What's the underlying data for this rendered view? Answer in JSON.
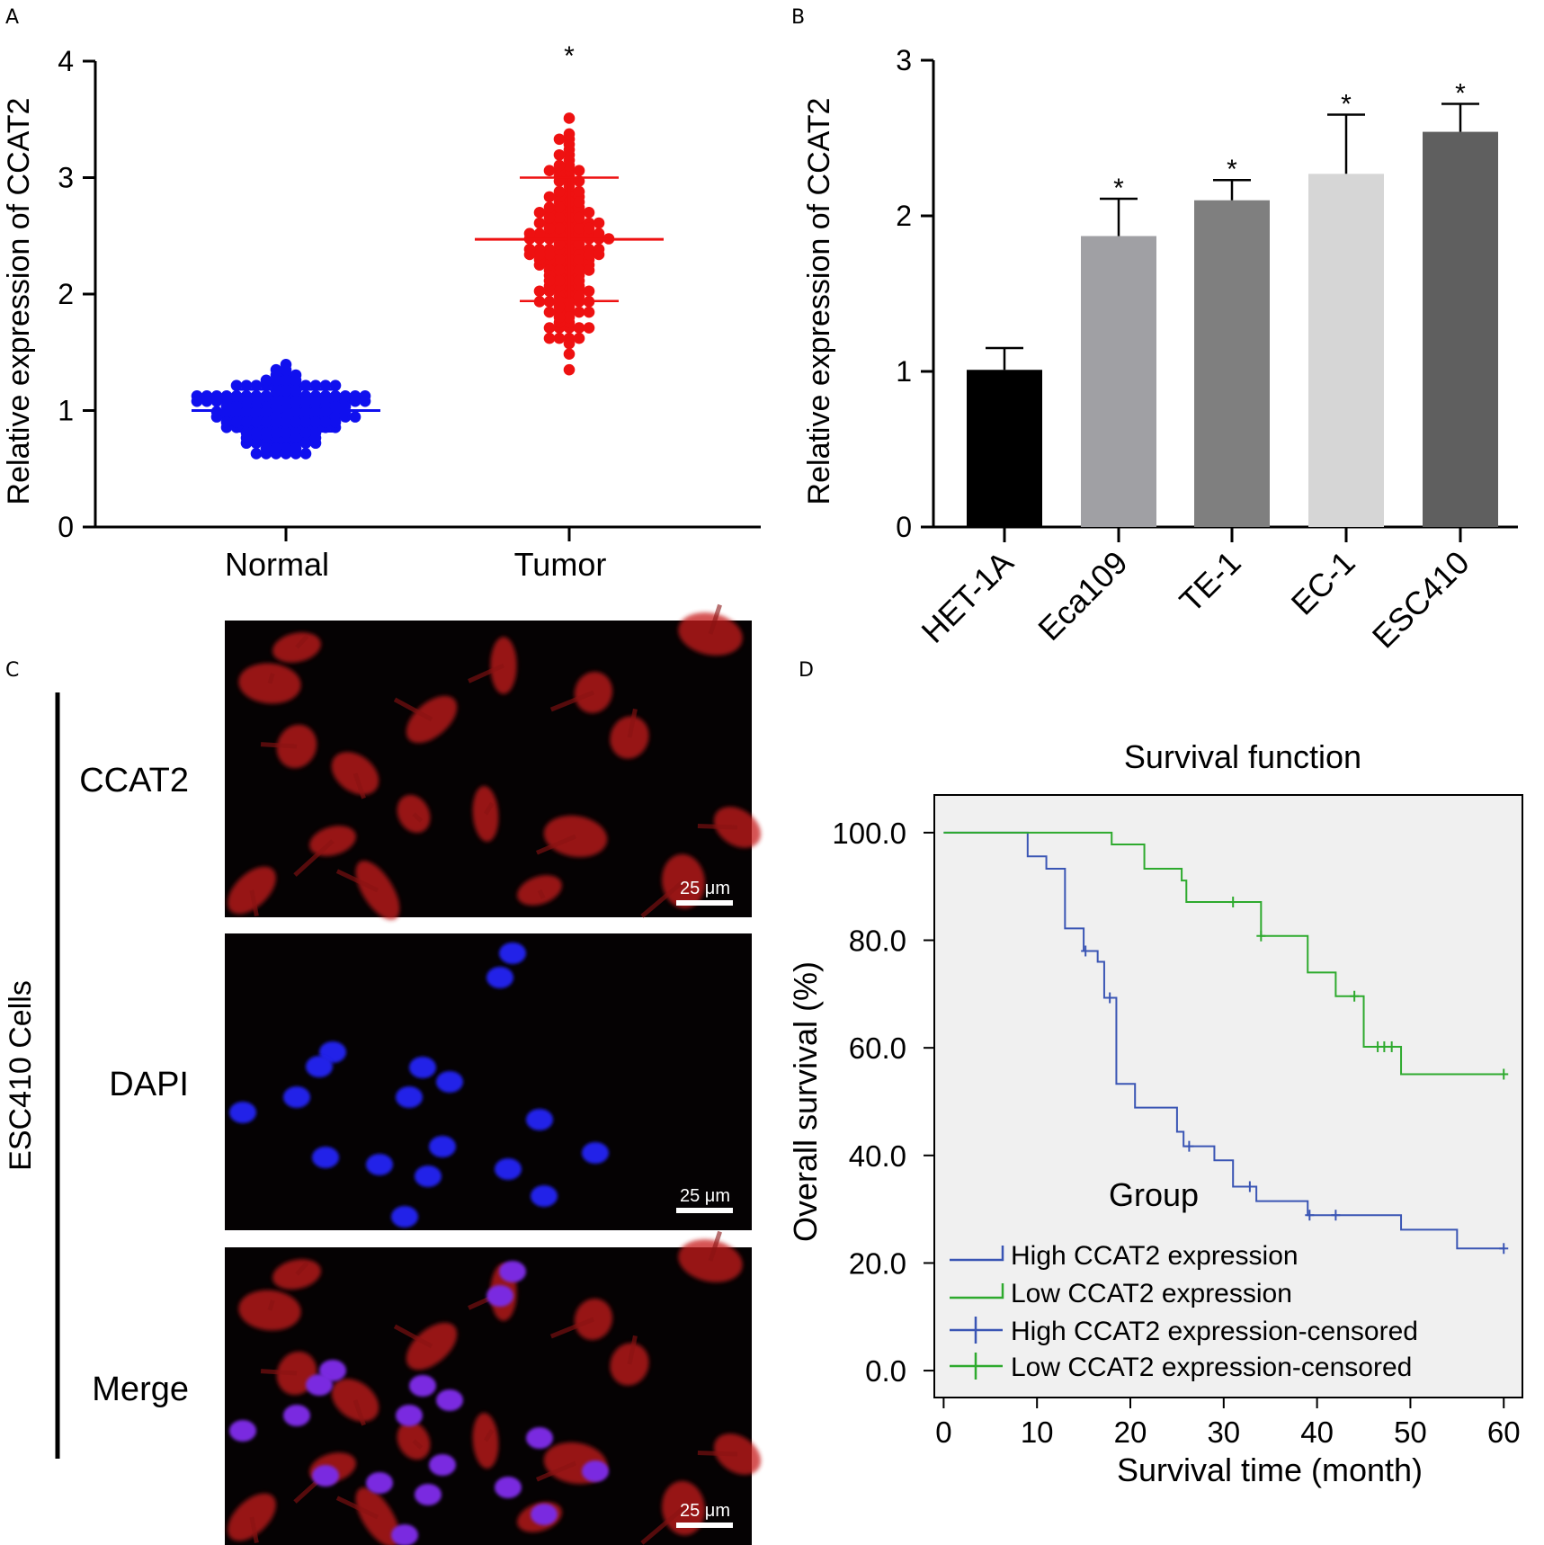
{
  "chart_data": [
    {
      "panel": "A",
      "type": "scatter",
      "ylabel": "Relative expression of CCAT2",
      "xlabel": "",
      "categories": [
        "Normal",
        "Tumor"
      ],
      "ylim": [
        0,
        4
      ],
      "yticks": [
        "0",
        "1",
        "2",
        "3",
        "4"
      ],
      "series": [
        {
          "name": "Normal",
          "color": "#1010ee",
          "mean": 1.0,
          "sd": 0.18,
          "min": 0.56,
          "max": 1.58,
          "n": 160
        },
        {
          "name": "Tumor",
          "color": "#ee1111",
          "mean": 2.47,
          "sd": 0.53,
          "min": 1.2,
          "max": 3.7,
          "n": 160
        }
      ],
      "annotations": [
        {
          "category": "Tumor",
          "text": "*"
        }
      ]
    },
    {
      "panel": "B",
      "type": "bar",
      "ylabel": "Relative expression of CCAT2",
      "xlabel": "",
      "categories": [
        "HET-1A",
        "Eca109",
        "TE-1",
        "EC-1",
        "ESC410"
      ],
      "values": [
        1.01,
        1.87,
        2.1,
        2.27,
        2.54
      ],
      "errors": [
        0.14,
        0.24,
        0.13,
        0.38,
        0.18
      ],
      "colors": [
        "#000000",
        "#a0a0a4",
        "#7f7f7f",
        "#d6d6d6",
        "#5f5f5f"
      ],
      "significance": [
        "",
        "*",
        "*",
        "*",
        "*"
      ],
      "ylim": [
        0,
        3
      ],
      "yticks": [
        "0",
        "1",
        "2",
        "3"
      ]
    },
    {
      "panel": "D",
      "type": "line",
      "title": "Survival function",
      "xlabel": "Survival time (month)",
      "ylabel": "Overall survival (%)",
      "xlim": [
        -1,
        62
      ],
      "ylim": [
        -5,
        107
      ],
      "xticks": [
        "0",
        "10",
        "20",
        "30",
        "40",
        "50",
        "60"
      ],
      "yticks": [
        "0.0",
        "20.0",
        "40.0",
        "60.0",
        "80.0",
        "100.0"
      ],
      "legend_title": "Group",
      "legend": [
        {
          "label": "High CCAT2 expression",
          "kind": "step",
          "color": "#3a55b4"
        },
        {
          "label": "Low CCAT2 expression",
          "kind": "step",
          "color": "#2eaa2e"
        },
        {
          "label": "High CCAT2 expression-censored",
          "kind": "censor",
          "color": "#3a55b4"
        },
        {
          "label": "Low CCAT2 expression-censored",
          "kind": "censor",
          "color": "#2eaa2e"
        }
      ],
      "series": [
        {
          "name": "High CCAT2 expression",
          "color": "#3a55b4",
          "steps": [
            [
              0,
              100
            ],
            [
              9,
              95.6
            ],
            [
              11,
              93.3
            ],
            [
              13,
              82.2
            ],
            [
              15,
              78
            ],
            [
              16.5,
              76
            ],
            [
              17.2,
              69.3
            ],
            [
              18.5,
              53.3
            ],
            [
              20.5,
              48.9
            ],
            [
              25,
              44.4
            ],
            [
              25.7,
              41.7
            ],
            [
              29,
              39.1
            ],
            [
              31,
              34.2
            ],
            [
              33.5,
              31.5
            ],
            [
              39,
              28.9
            ],
            [
              49,
              26.2
            ],
            [
              55,
              22.7
            ],
            [
              60,
              22.7
            ]
          ],
          "censored": [
            [
              15.2,
              78
            ],
            [
              17.8,
              69.3
            ],
            [
              26.3,
              41.7
            ],
            [
              32.8,
              34.2
            ],
            [
              39.2,
              28.9
            ],
            [
              42,
              28.9
            ],
            [
              60,
              22.7
            ]
          ]
        },
        {
          "name": "Low CCAT2 expression",
          "color": "#2eaa2e",
          "steps": [
            [
              0,
              100
            ],
            [
              18,
              97.8
            ],
            [
              21.5,
              93.3
            ],
            [
              25.5,
              91.1
            ],
            [
              26,
              87.1
            ],
            [
              34,
              80.8
            ],
            [
              39,
              74
            ],
            [
              42,
              69.6
            ],
            [
              45,
              60.2
            ],
            [
              49,
              55.1
            ],
            [
              60,
              55.1
            ]
          ],
          "censored": [
            [
              31,
              87.1
            ],
            [
              34,
              80.8
            ],
            [
              44,
              69.6
            ],
            [
              46.5,
              60.2
            ],
            [
              47.2,
              60.2
            ],
            [
              48,
              60.2
            ],
            [
              60,
              55.1
            ]
          ]
        }
      ]
    }
  ],
  "panel_labels": {
    "a": "A",
    "b": "B",
    "c": "C",
    "d": "D"
  },
  "panel_c": {
    "side_label": "ESC410 Cells",
    "rows": [
      {
        "label": "CCAT2",
        "channel": "red",
        "scale_bar": "25 μm"
      },
      {
        "label": "DAPI",
        "channel": "blue",
        "scale_bar": "25 μm"
      },
      {
        "label": "Merge",
        "channel": "merge",
        "scale_bar": "25 μm"
      }
    ]
  }
}
